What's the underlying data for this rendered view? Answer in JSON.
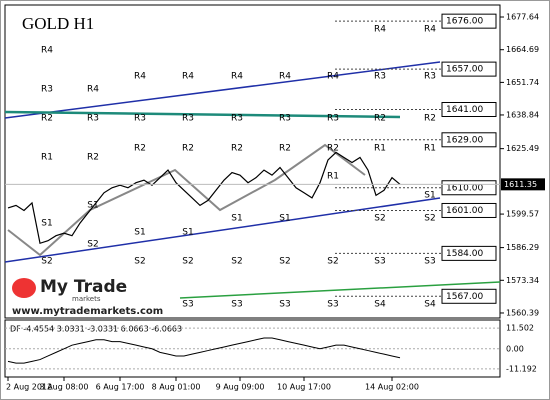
{
  "chart_data": {
    "type": "line",
    "title": "GOLD H1",
    "categories": [
      "2 Aug 2012",
      null,
      null,
      null,
      null,
      null,
      null,
      "3 Aug 08:00",
      null,
      null,
      null,
      null,
      null,
      null,
      "6 Aug 17:00",
      null,
      null,
      null,
      null,
      null,
      null,
      "8 Aug 01:00",
      null,
      null,
      null,
      null,
      null,
      null,
      null,
      "9 Aug 09:00",
      null,
      null,
      null,
      null,
      null,
      null,
      null,
      "10 Aug 17:00",
      null,
      null,
      null,
      null,
      null,
      null,
      null,
      null,
      null,
      null,
      "14 Aug 02:00",
      null
    ],
    "values": [
      1602,
      1603,
      1601,
      1604,
      1588,
      1589,
      1591,
      1592,
      1591,
      1596,
      1600,
      1604,
      1608,
      1610,
      1611,
      1610,
      1612,
      1613,
      1611,
      1614,
      1617,
      1612,
      1609,
      1606,
      1603,
      1605,
      1609,
      1613,
      1616,
      1615,
      1612,
      1614,
      1617,
      1615,
      1618,
      1614,
      1610,
      1608,
      1606,
      1612,
      1621,
      1624,
      1622,
      1620,
      1622,
      1617,
      1607,
      1609,
      1614,
      1611.35
    ],
    "color": "#000000",
    "ylim": [
      1558.4,
      1682.4
    ],
    "yticks": [
      1677.64,
      1664.69,
      1651.74,
      1638.84,
      1625.49,
      1599.57,
      1586.29,
      1573.34,
      1560.39
    ],
    "last_price": 1611.35,
    "levels": [
      {
        "value": 1676,
        "label": "1676.00"
      },
      {
        "value": 1657,
        "label": "1657.00"
      },
      {
        "value": 1641,
        "label": "1641.00"
      },
      {
        "value": 1629,
        "label": "1629.00"
      },
      {
        "value": 1610,
        "label": "1610.00"
      },
      {
        "value": 1601,
        "label": "1601.00"
      },
      {
        "value": 1584,
        "label": "1584.00"
      },
      {
        "value": 1567,
        "label": "1567.00"
      }
    ],
    "pivot_labels": [
      "R4",
      "R3",
      "R4",
      "R2",
      "R3",
      "R1",
      "R2",
      "R4",
      "R4",
      "R4",
      "R4",
      "R4",
      "R3",
      "R3",
      "R3",
      "R3",
      "R3",
      "R3",
      "R3",
      "R2",
      "R2",
      "R2",
      "R2",
      "R2",
      "R2",
      "R2",
      "R1",
      "R1",
      "R1",
      "S1",
      "S1",
      "S1",
      "S1",
      "S1",
      "S1",
      "S1",
      "S2",
      "S2",
      "S2",
      "S2",
      "S2",
      "S2",
      "S2",
      "S2",
      "S2",
      "S3",
      "S3",
      "S3",
      "S3",
      "S3",
      "S3",
      "S4",
      "S4",
      "R4",
      "R4"
    ],
    "watermark": {
      "brand": "My Trade",
      "sub": "markets",
      "url": "www.mytrademarkets.com"
    },
    "indicator": {
      "label": "DF -4.4554 3.0331 -3.0331 6.0663 -6.0663",
      "ylim": [
        -15.7,
        16.0
      ],
      "yticks": [
        11.502,
        {
          "value": 0,
          "label": "0.00"
        },
        -11.192
      ],
      "color": "#000000",
      "values": [
        -7,
        -8,
        -8,
        -7,
        -6,
        -4,
        -2,
        0,
        2,
        3,
        4,
        5,
        5,
        4,
        4,
        3,
        2,
        1,
        0,
        -2,
        -3,
        -4,
        -4,
        -3,
        -2,
        -1,
        0,
        1,
        2,
        3,
        4,
        5,
        6,
        6,
        5,
        4,
        3,
        2,
        1,
        0,
        1,
        2,
        2,
        1,
        0,
        -1,
        -2,
        -3,
        -4,
        -5
      ]
    }
  }
}
